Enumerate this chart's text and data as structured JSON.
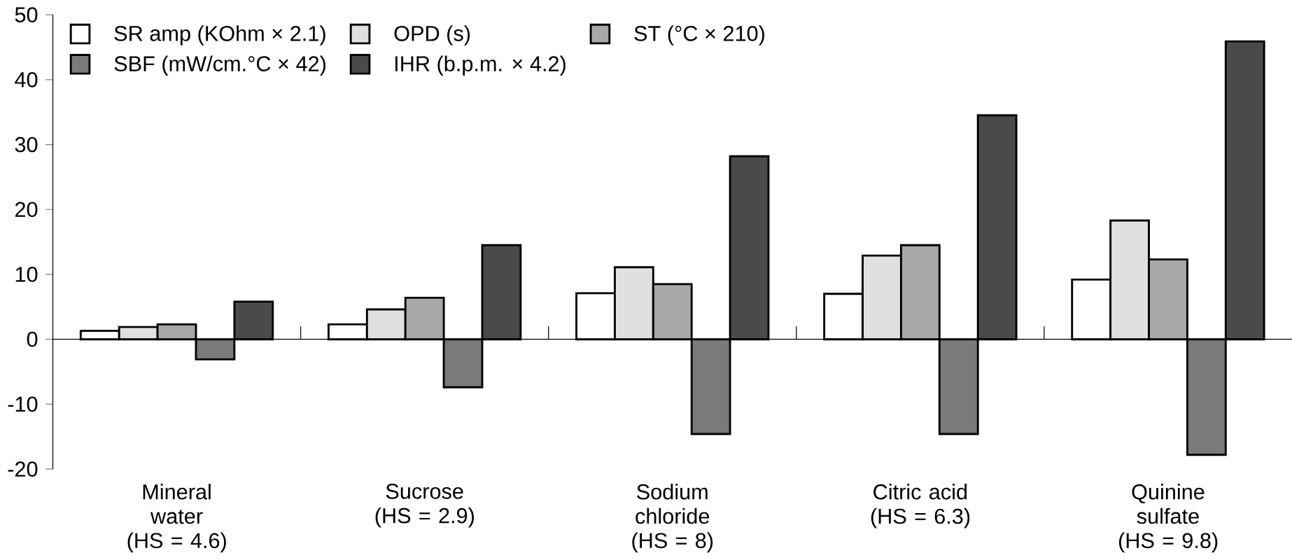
{
  "chart_data": {
    "type": "bar",
    "categories": [
      "Mineral water (HS = 4.6)",
      "Sucrose (HS = 2.9)",
      "Sodium chloride (HS = 8)",
      "Citric acid (HS = 6.3)",
      "Quinine sulfate (HS = 9.8)"
    ],
    "series": [
      {
        "name": "SR amp (KOhm × 2.1)",
        "color": "#ffffff",
        "values": [
          1.3,
          2.3,
          7.1,
          7.0,
          9.2
        ]
      },
      {
        "name": "OPD (s)",
        "color": "#e0e0e0",
        "values": [
          1.9,
          4.6,
          11.1,
          12.9,
          18.3
        ]
      },
      {
        "name": "ST (°C × 210)",
        "color": "#a8a8a8",
        "values": [
          2.3,
          6.4,
          8.5,
          14.5,
          12.3
        ]
      },
      {
        "name": "SBF (mW/cm.°C × 42)",
        "color": "#7a7a7a",
        "values": [
          -3.1,
          -7.4,
          -14.6,
          -14.6,
          -17.8
        ]
      },
      {
        "name": "IHR (b.p.m. × 4.2)",
        "color": "#4a4a4a",
        "values": [
          5.8,
          14.5,
          28.2,
          34.5,
          45.9
        ]
      }
    ],
    "ylim": [
      -20,
      50
    ],
    "yticks": [
      -20,
      -10,
      0,
      10,
      20,
      30,
      40,
      50
    ],
    "legend": "top left"
  }
}
